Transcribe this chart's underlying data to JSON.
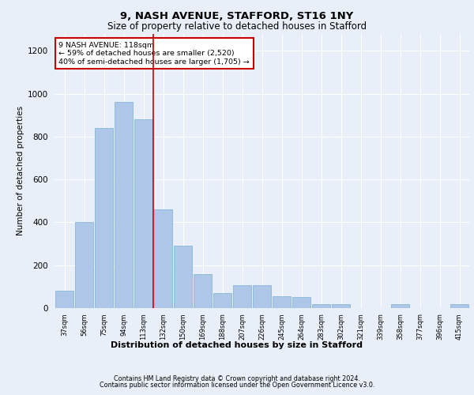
{
  "title1": "9, NASH AVENUE, STAFFORD, ST16 1NY",
  "title2": "Size of property relative to detached houses in Stafford",
  "xlabel": "Distribution of detached houses by size in Stafford",
  "ylabel": "Number of detached properties",
  "categories": [
    "37sqm",
    "56sqm",
    "75sqm",
    "94sqm",
    "113sqm",
    "132sqm",
    "150sqm",
    "169sqm",
    "188sqm",
    "207sqm",
    "226sqm",
    "245sqm",
    "264sqm",
    "283sqm",
    "302sqm",
    "321sqm",
    "339sqm",
    "358sqm",
    "377sqm",
    "396sqm",
    "415sqm"
  ],
  "values": [
    80,
    400,
    840,
    960,
    880,
    460,
    290,
    160,
    70,
    105,
    105,
    55,
    50,
    20,
    20,
    0,
    0,
    20,
    0,
    0,
    20
  ],
  "bar_color": "#aec6e8",
  "bar_edge_color": "#7aafd4",
  "vline_color": "#cc0000",
  "annotation_text": "9 NASH AVENUE: 118sqm\n← 59% of detached houses are smaller (2,520)\n40% of semi-detached houses are larger (1,705) →",
  "ylim": [
    0,
    1280
  ],
  "yticks": [
    0,
    200,
    400,
    600,
    800,
    1000,
    1200
  ],
  "bg_color": "#e8eff8",
  "plot_bg_color": "#e8eff8",
  "footer1": "Contains HM Land Registry data © Crown copyright and database right 2024.",
  "footer2": "Contains public sector information licensed under the Open Government Licence v3.0.",
  "grid_color": "#ffffff",
  "annotation_box_color": "#ffffff",
  "annotation_box_edge": "#cc0000",
  "vline_bar_index": 4
}
